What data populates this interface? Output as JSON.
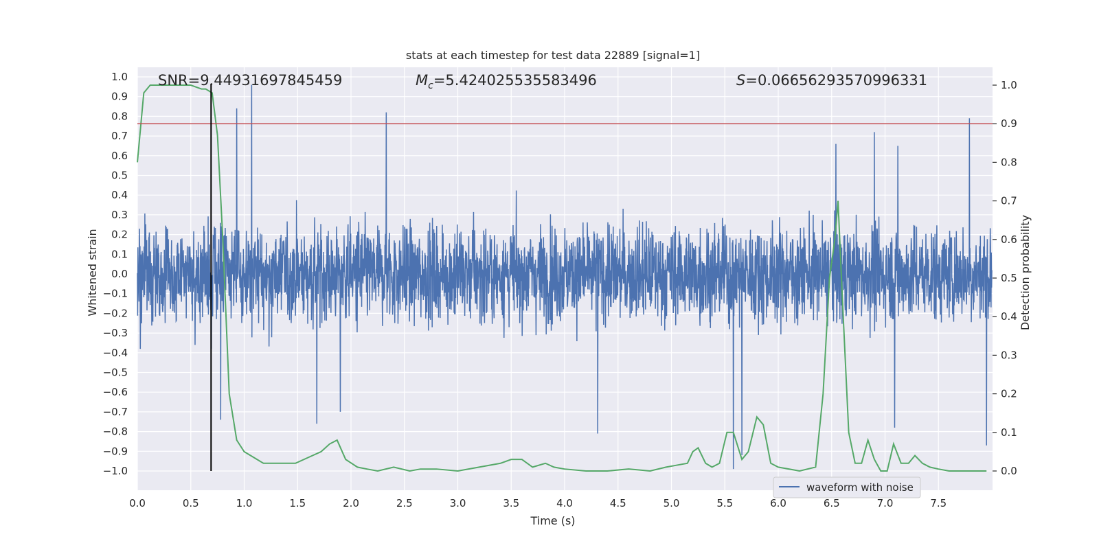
{
  "chart_data": {
    "type": "line",
    "title": "stats at each timestep for test data 22889 [signal=1]",
    "xlabel": "Time (s)",
    "ylabel": "Whitened strain",
    "y2label": "Detection probability",
    "xlim": [
      0.0,
      8.0
    ],
    "ylim": [
      -1.0,
      1.0
    ],
    "y2lim": [
      0.0,
      1.0
    ],
    "x_ticks": [
      "0.0",
      "0.5",
      "1.0",
      "1.5",
      "2.0",
      "2.5",
      "3.0",
      "3.5",
      "4.0",
      "4.5",
      "5.0",
      "5.5",
      "6.0",
      "6.5",
      "7.0",
      "7.5"
    ],
    "y_ticks": [
      "1.0",
      "0.9",
      "0.8",
      "0.7",
      "0.6",
      "0.5",
      "0.4",
      "0.3",
      "0.2",
      "0.1",
      "0.0",
      "-0.1",
      "-0.2",
      "-0.3",
      "-0.4",
      "-0.5",
      "-0.6",
      "-0.7",
      "-0.8",
      "-0.9",
      "-1.0"
    ],
    "y2_ticks": [
      "1.0",
      "0.9",
      "0.8",
      "0.7",
      "0.6",
      "0.5",
      "0.4",
      "0.3",
      "0.2",
      "0.1",
      "0.0"
    ],
    "grid": true,
    "legend": {
      "position": "lower right",
      "entries": [
        {
          "label": "waveform with noise",
          "color": "#4c72b0"
        }
      ]
    },
    "annotations": {
      "snr": "SNR=9.44931697845459",
      "mc_symbol": "M",
      "mc_sub": "c",
      "mc_value": "=5.424025535583496",
      "s_symbol": "S",
      "s_value": "=0.06656293570996331"
    },
    "threshold": {
      "probability": 0.9,
      "color": "#c44e52"
    },
    "peak_time": 0.69,
    "series": [
      {
        "name": "waveform with noise",
        "color": "#4c72b0",
        "axis": "left",
        "kind": "noise",
        "envelope_upper": 0.45,
        "envelope_lower": -0.4,
        "spikes": [
          {
            "x": 1.07,
            "y": 0.96
          },
          {
            "x": 0.93,
            "y": 0.84
          },
          {
            "x": 2.33,
            "y": 0.82
          },
          {
            "x": 7.79,
            "y": 0.79
          },
          {
            "x": 6.9,
            "y": 0.72
          },
          {
            "x": 7.12,
            "y": 0.65
          },
          {
            "x": 6.54,
            "y": 0.66
          },
          {
            "x": 0.78,
            "y": -0.74
          },
          {
            "x": 1.68,
            "y": -0.76
          },
          {
            "x": 1.9,
            "y": -0.7
          },
          {
            "x": 4.31,
            "y": -0.81
          },
          {
            "x": 5.58,
            "y": -0.99
          },
          {
            "x": 5.66,
            "y": -0.92
          },
          {
            "x": 7.09,
            "y": -0.78
          },
          {
            "x": 7.95,
            "y": -0.87
          }
        ]
      },
      {
        "name": "",
        "color": "#55a868",
        "axis": "right",
        "x": [
          0.0,
          0.06,
          0.12,
          0.2,
          0.3,
          0.4,
          0.5,
          0.6,
          0.64,
          0.7,
          0.75,
          0.8,
          0.86,
          0.93,
          1.0,
          1.06,
          1.12,
          1.18,
          1.25,
          1.32,
          1.4,
          1.48,
          1.56,
          1.64,
          1.72,
          1.8,
          1.87,
          1.95,
          2.06,
          2.15,
          2.25,
          2.4,
          2.55,
          2.65,
          2.8,
          3.0,
          3.2,
          3.4,
          3.5,
          3.6,
          3.7,
          3.82,
          3.9,
          4.0,
          4.2,
          4.4,
          4.6,
          4.8,
          4.95,
          5.05,
          5.15,
          5.2,
          5.25,
          5.32,
          5.38,
          5.45,
          5.52,
          5.58,
          5.66,
          5.72,
          5.8,
          5.86,
          5.93,
          6.0,
          6.2,
          6.35,
          6.42,
          6.48,
          6.53,
          6.56,
          6.6,
          6.66,
          6.72,
          6.78,
          6.84,
          6.9,
          6.96,
          7.02,
          7.08,
          7.15,
          7.22,
          7.28,
          7.35,
          7.42,
          7.5,
          7.6,
          7.75,
          7.95
        ],
        "y": [
          0.8,
          0.98,
          1.0,
          1.0,
          1.0,
          1.0,
          1.0,
          0.99,
          0.99,
          0.98,
          0.87,
          0.6,
          0.2,
          0.08,
          0.05,
          0.04,
          0.03,
          0.02,
          0.02,
          0.02,
          0.02,
          0.02,
          0.03,
          0.04,
          0.05,
          0.07,
          0.08,
          0.03,
          0.01,
          0.005,
          0.0,
          0.01,
          0.0,
          0.005,
          0.005,
          0.0,
          0.01,
          0.02,
          0.03,
          0.03,
          0.01,
          0.02,
          0.01,
          0.005,
          0.0,
          0.0,
          0.005,
          0.0,
          0.01,
          0.015,
          0.02,
          0.05,
          0.06,
          0.02,
          0.01,
          0.02,
          0.1,
          0.1,
          0.03,
          0.05,
          0.14,
          0.12,
          0.02,
          0.01,
          0.0,
          0.01,
          0.2,
          0.5,
          0.6,
          0.7,
          0.45,
          0.1,
          0.02,
          0.02,
          0.08,
          0.03,
          0.0,
          0.0,
          0.07,
          0.02,
          0.02,
          0.04,
          0.02,
          0.01,
          0.005,
          0.0,
          0.0,
          0.0
        ]
      }
    ]
  }
}
